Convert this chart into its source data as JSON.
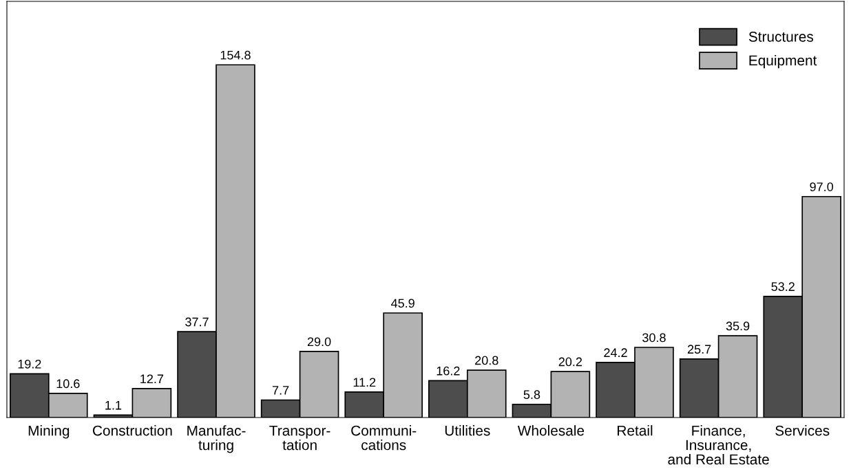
{
  "chart_data": {
    "type": "bar",
    "categories": [
      "Mining",
      "Construction",
      "Manufac-\nturing",
      "Transpor-\ntation",
      "Communi-\ncations",
      "Utilities",
      "Wholesale",
      "Retail",
      "Finance,\nInsurance,\nand Real Estate",
      "Services"
    ],
    "series": [
      {
        "name": "Structures",
        "color": "#4d4d4d",
        "values": [
          19.2,
          1.1,
          37.7,
          7.7,
          11.2,
          16.2,
          5.8,
          24.2,
          25.7,
          53.2
        ],
        "value_labels": [
          "19.2",
          "1.1",
          "37.7",
          "7.7",
          "11.2",
          "16.2",
          "5.8",
          "24.2",
          "25.7",
          "53.2"
        ]
      },
      {
        "name": "Equipment",
        "color": "#b3b3b3",
        "values": [
          10.6,
          12.7,
          154.8,
          29.0,
          45.9,
          20.8,
          20.2,
          30.8,
          35.9,
          97.0
        ],
        "value_labels": [
          "10.6",
          "12.7",
          "154.8",
          "29.0",
          "45.9",
          "20.8",
          "20.2",
          "30.8",
          "35.9",
          "97.0"
        ]
      }
    ],
    "legend": "top right",
    "grid": false,
    "tick_labels": "x"
  }
}
